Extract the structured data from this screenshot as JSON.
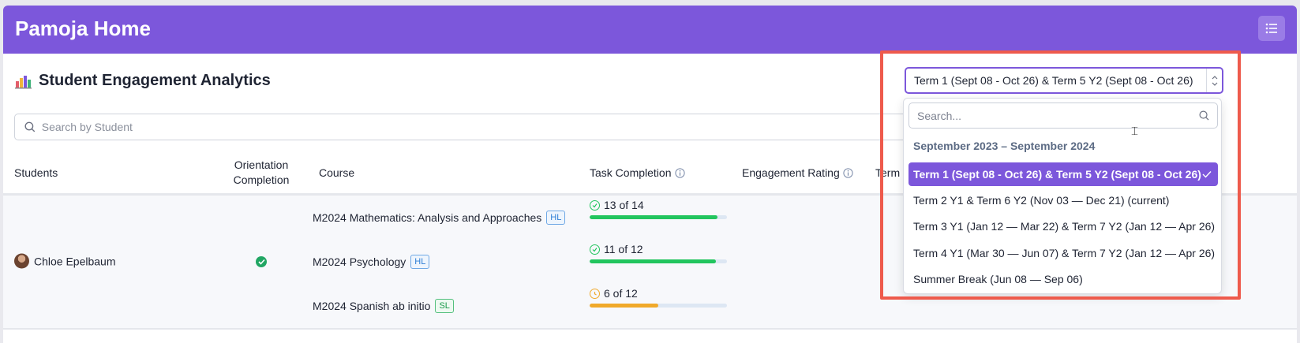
{
  "app": {
    "title": "Pamoja Home"
  },
  "section": {
    "title": "Student Engagement Analytics"
  },
  "search": {
    "placeholder": "Search by Student"
  },
  "table": {
    "headers": {
      "students": "Students",
      "orientation": "Orientation Completion",
      "course": "Course",
      "task_completion": "Task Completion",
      "engagement_rating": "Engagement Rating",
      "term": "Term"
    },
    "rows": [
      {
        "student": "Chloe Epelbaum",
        "orientation_complete": true,
        "courses": [
          {
            "name": "M2024 Mathematics: Analysis and Approaches",
            "level": "HL",
            "task_text": "13 of 14",
            "progress": 0.93,
            "color": "#22c55e"
          },
          {
            "name": "M2024 Psychology",
            "level": "HL",
            "task_text": "11 of 12",
            "progress": 0.92,
            "color": "#22c55e"
          },
          {
            "name": "M2024 Spanish ab initio",
            "level": "SL",
            "task_text": "6 of 12",
            "progress": 0.5,
            "color": "#f0a92a"
          }
        ]
      }
    ]
  },
  "term_select": {
    "value": "Term 1 (Sept 08 - Oct 26) & Term 5 Y2 (Sept 08 - Oct 26)",
    "search_placeholder": "Search...",
    "group_label": "September 2023 – September 2024",
    "options": [
      {
        "label": "Term 1 (Sept 08 - Oct 26) & Term 5 Y2 (Sept 08 - Oct 26)",
        "selected": true
      },
      {
        "label": "Term 2 Y1 & Term 6 Y2 (Nov 03 — Dec 21) (current)",
        "selected": false
      },
      {
        "label": "Term 3 Y1 (Jan 12 — Mar 22) & Term 7 Y2 (Jan 12 — Apr 26)",
        "selected": false
      },
      {
        "label": "Term 4 Y1 (Mar 30 — Jun 07) & Term 7 Y2 (Jan 12 — Apr 26)",
        "selected": false
      },
      {
        "label": "Summer Break (Jun 08 — Sep 06)",
        "selected": false
      }
    ]
  },
  "colors": {
    "brand": "#7c57db",
    "highlight": "#ee5a4c",
    "success": "#22c55e",
    "warning": "#f0a92a"
  }
}
